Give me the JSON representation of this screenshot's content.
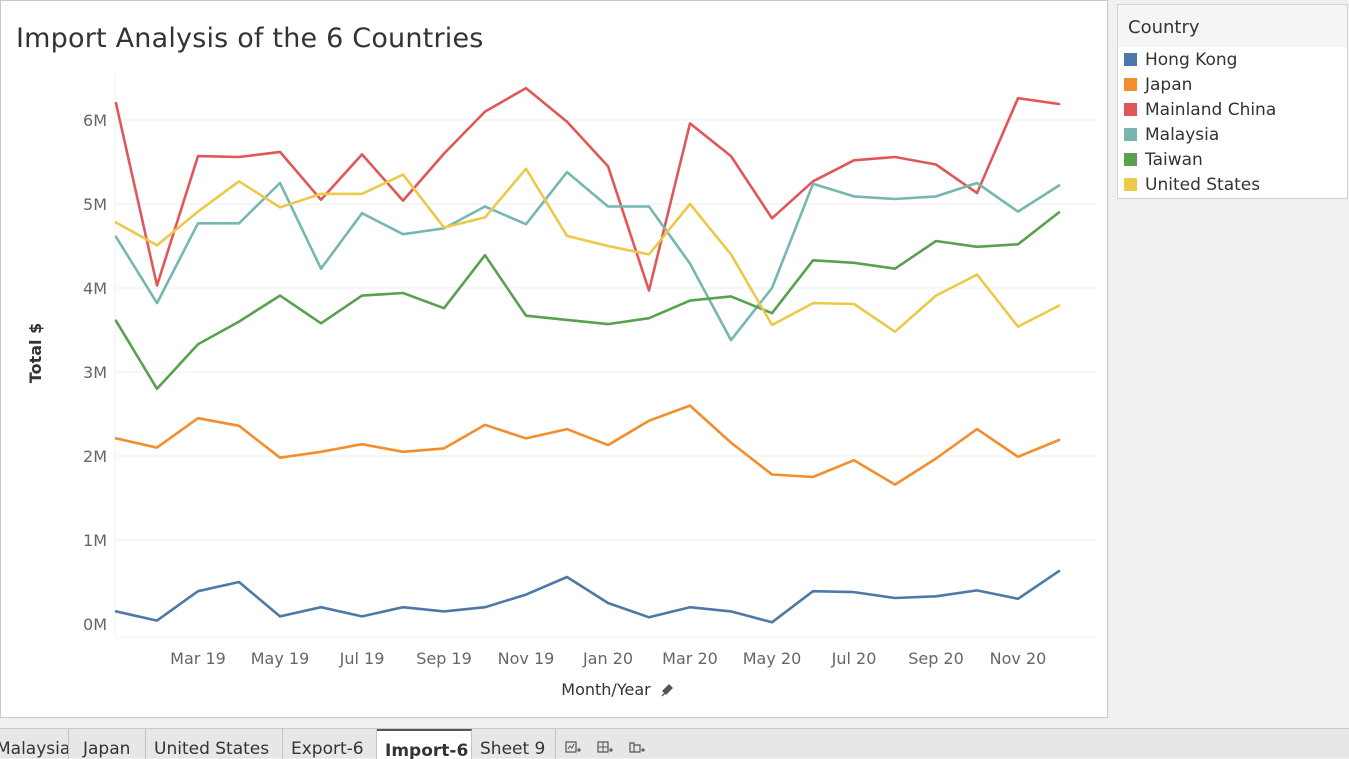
{
  "tabs": [
    {
      "label": "Malaysia",
      "active": false
    },
    {
      "label": "Japan",
      "active": false
    },
    {
      "label": "United States",
      "active": false
    },
    {
      "label": "Export-6",
      "active": false
    },
    {
      "label": "Import-6",
      "active": true
    },
    {
      "label": "Sheet 9",
      "active": false
    }
  ],
  "tab_icons": [
    "new-worksheet-icon",
    "new-dashboard-icon",
    "new-story-icon"
  ],
  "legend": {
    "title": "Country",
    "items": [
      {
        "label": "Hong Kong",
        "color": "#4e79a7"
      },
      {
        "label": "Japan",
        "color": "#f28e2b"
      },
      {
        "label": "Mainland China",
        "color": "#e15759"
      },
      {
        "label": "Malaysia",
        "color": "#76b7b2"
      },
      {
        "label": "Taiwan",
        "color": "#59a14f"
      },
      {
        "label": "United States",
        "color": "#edc948"
      }
    ]
  },
  "chart_data": {
    "type": "line",
    "title": "Import Analysis of the 6 Countries",
    "xlabel": "Month/Year",
    "ylabel": "Total $",
    "ylim": [
      0,
      6700000
    ],
    "grid": true,
    "legend_position": "right",
    "x": [
      "Jan 19",
      "Feb 19",
      "Mar 19",
      "Apr 19",
      "May 19",
      "Jun 19",
      "Jul 19",
      "Aug 19",
      "Sep 19",
      "Oct 19",
      "Nov 19",
      "Dec 19",
      "Jan 20",
      "Feb 20",
      "Mar 20",
      "Apr 20",
      "May 20",
      "Jun 20",
      "Jul 20",
      "Aug 20",
      "Sep 20",
      "Oct 20",
      "Nov 20",
      "Dec 20"
    ],
    "x_ticks": [
      "Mar 19",
      "May 19",
      "Jul 19",
      "Sep 19",
      "Nov 19",
      "Jan 20",
      "Mar 20",
      "May 20",
      "Jul 20",
      "Sep 20",
      "Nov 20"
    ],
    "y_ticks": [
      {
        "value": 0,
        "label": "0M"
      },
      {
        "value": 1000000,
        "label": "1M"
      },
      {
        "value": 2000000,
        "label": "2M"
      },
      {
        "value": 3000000,
        "label": "3M"
      },
      {
        "value": 4000000,
        "label": "4M"
      },
      {
        "value": 5000000,
        "label": "5M"
      },
      {
        "value": 6000000,
        "label": "6M"
      }
    ],
    "series": [
      {
        "name": "Hong Kong",
        "color": "#4e79a7",
        "values": [
          150000,
          40000,
          390000,
          500000,
          90000,
          200000,
          90000,
          200000,
          150000,
          200000,
          350000,
          560000,
          250000,
          80000,
          200000,
          150000,
          20000,
          390000,
          380000,
          310000,
          330000,
          400000,
          300000,
          630000
        ]
      },
      {
        "name": "Japan",
        "color": "#f28e2b",
        "values": [
          2210000,
          2100000,
          2450000,
          2360000,
          1980000,
          2050000,
          2140000,
          2050000,
          2090000,
          2370000,
          2210000,
          2320000,
          2130000,
          2420000,
          2600000,
          2160000,
          1780000,
          1750000,
          1950000,
          1660000,
          1970000,
          2320000,
          1990000,
          2190000
        ]
      },
      {
        "name": "Mainland China",
        "color": "#e15759",
        "values": [
          6200000,
          4030000,
          5570000,
          5560000,
          5620000,
          5050000,
          5590000,
          5040000,
          5600000,
          6100000,
          6380000,
          5980000,
          5450000,
          3970000,
          5960000,
          5570000,
          4830000,
          5270000,
          5520000,
          5560000,
          5470000,
          5130000,
          6260000,
          6190000
        ]
      },
      {
        "name": "Malaysia",
        "color": "#76b7b2",
        "values": [
          4610000,
          3820000,
          4770000,
          4770000,
          5250000,
          4230000,
          4890000,
          4640000,
          4710000,
          4970000,
          4760000,
          5380000,
          4970000,
          4970000,
          4290000,
          3380000,
          4000000,
          5240000,
          5090000,
          5060000,
          5090000,
          5250000,
          4910000,
          5220000
        ]
      },
      {
        "name": "Taiwan",
        "color": "#59a14f",
        "values": [
          3610000,
          2800000,
          3330000,
          3600000,
          3910000,
          3580000,
          3910000,
          3940000,
          3760000,
          4390000,
          3670000,
          3620000,
          3570000,
          3640000,
          3850000,
          3900000,
          3700000,
          4330000,
          4300000,
          4230000,
          4560000,
          4490000,
          4520000,
          4900000
        ]
      },
      {
        "name": "United States",
        "color": "#edc948",
        "values": [
          4780000,
          4510000,
          4910000,
          5270000,
          4960000,
          5120000,
          5120000,
          5350000,
          4720000,
          4840000,
          5420000,
          4620000,
          4500000,
          4400000,
          5000000,
          4400000,
          3560000,
          3820000,
          3810000,
          3480000,
          3910000,
          4160000,
          3540000,
          3790000
        ]
      }
    ]
  }
}
